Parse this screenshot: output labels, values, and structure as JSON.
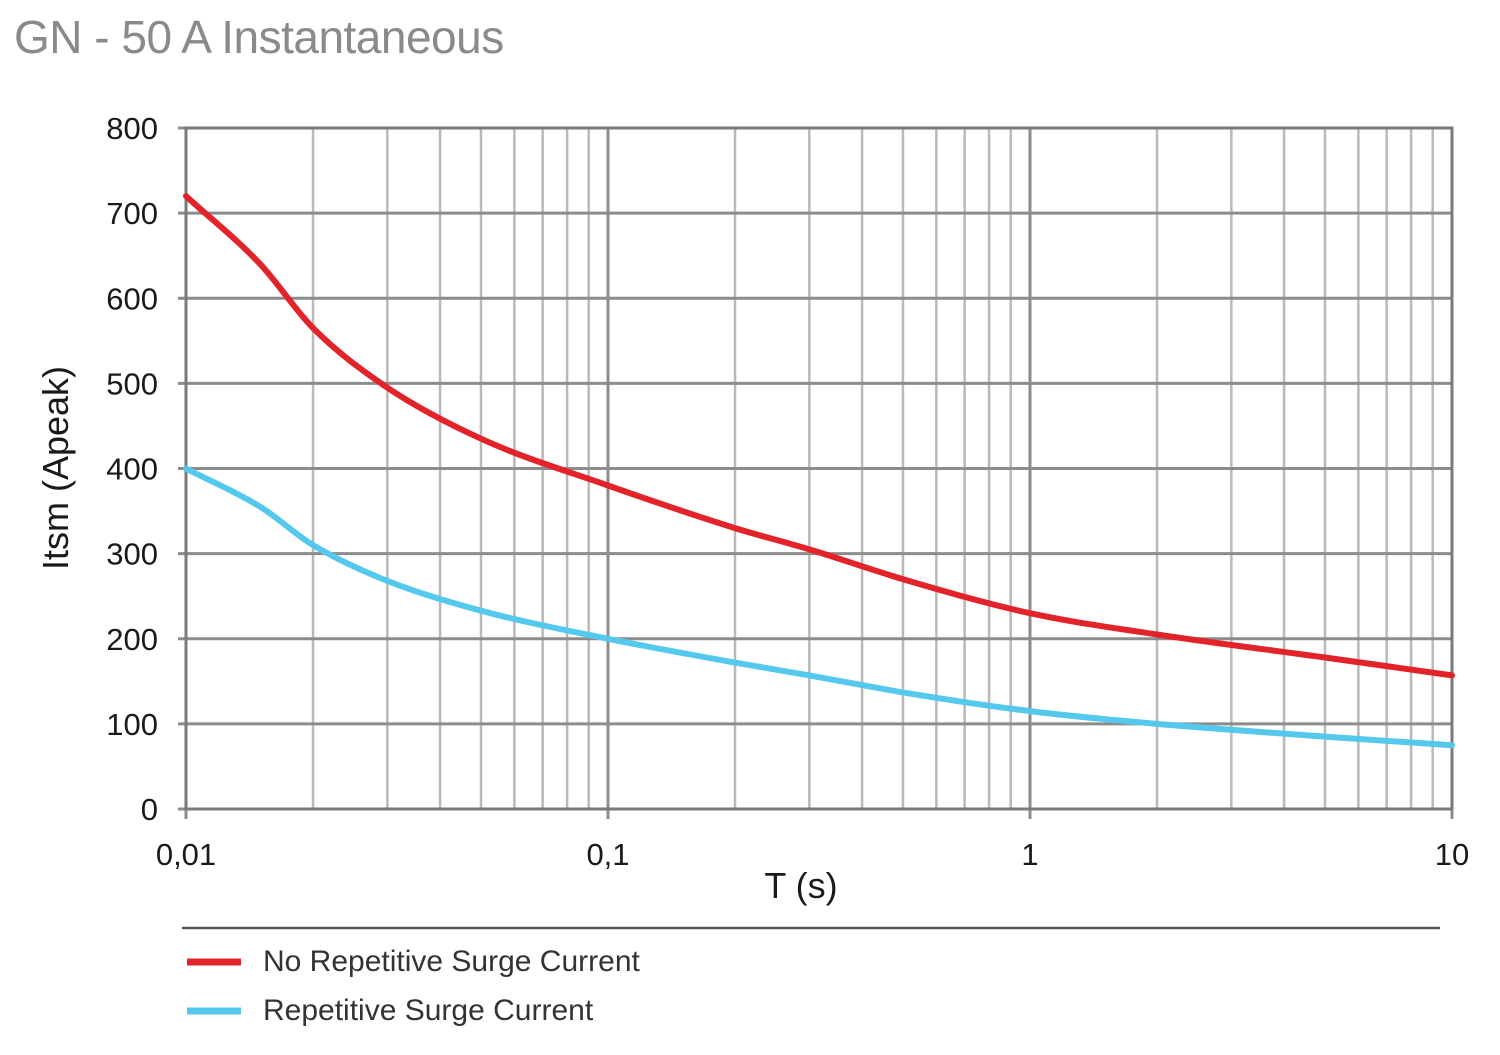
{
  "title": "GN - 50 A Instantaneous",
  "colors": {
    "grid_major": "#8c8c8c",
    "grid_minor": "#b9b9b9",
    "axis": "#7a7a7a",
    "series_red": "#e3232a",
    "series_blue": "#55c8ee"
  },
  "chart_data": {
    "type": "line",
    "title": "GN - 50 A Instantaneous",
    "xlabel": "T (s)",
    "ylabel": "Itsm (Apeak)",
    "x_scale": "log",
    "xlim": [
      0.01,
      10
    ],
    "ylim": [
      0,
      800
    ],
    "grid": true,
    "legend_position": "bottom",
    "x_ticks": [
      {
        "value": 0.01,
        "label": "0,01"
      },
      {
        "value": 0.1,
        "label": "0,1"
      },
      {
        "value": 1,
        "label": "1"
      },
      {
        "value": 10,
        "label": "10"
      }
    ],
    "y_ticks": [
      {
        "value": 0,
        "label": "0"
      },
      {
        "value": 100,
        "label": "100"
      },
      {
        "value": 200,
        "label": "200"
      },
      {
        "value": 300,
        "label": "300"
      },
      {
        "value": 400,
        "label": "400"
      },
      {
        "value": 500,
        "label": "500"
      },
      {
        "value": 600,
        "label": "600"
      },
      {
        "value": 700,
        "label": "700"
      },
      {
        "value": 800,
        "label": "800"
      }
    ],
    "series": [
      {
        "name": "No Repetitive Surge Current",
        "color": "#e3232a",
        "x": [
          0.01,
          0.015,
          0.02,
          0.03,
          0.05,
          0.1,
          0.2,
          0.3,
          0.5,
          1,
          2,
          5,
          10
        ],
        "y": [
          720,
          640,
          565,
          495,
          435,
          380,
          330,
          305,
          270,
          230,
          205,
          178,
          157
        ]
      },
      {
        "name": "Repetitive Surge Current",
        "color": "#55c8ee",
        "x": [
          0.01,
          0.015,
          0.02,
          0.03,
          0.05,
          0.1,
          0.2,
          0.3,
          0.5,
          1,
          2,
          5,
          10
        ],
        "y": [
          400,
          355,
          310,
          268,
          233,
          200,
          172,
          157,
          137,
          115,
          100,
          85,
          75
        ]
      }
    ]
  }
}
